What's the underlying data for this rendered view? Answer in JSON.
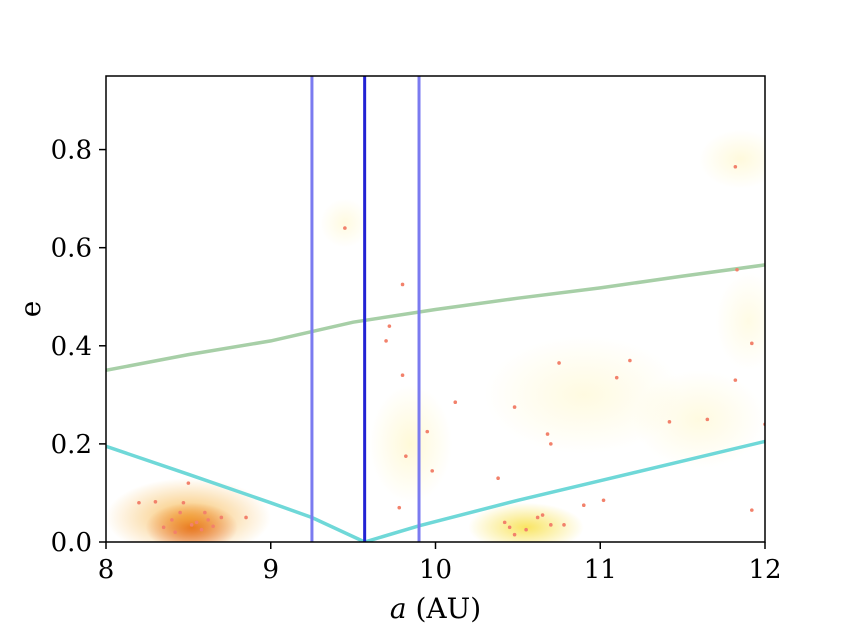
{
  "chart_data": {
    "type": "scatter",
    "xlabel_var": "a",
    "xlabel_unit": "(AU)",
    "ylabel": "e",
    "xlim": [
      8,
      12
    ],
    "ylim": [
      0,
      0.95
    ],
    "xticks": [
      8,
      9,
      10,
      11,
      12
    ],
    "xtick_labels": [
      "8",
      "9",
      "10",
      "11",
      "12"
    ],
    "yticks": [
      0.0,
      0.2,
      0.4,
      0.6,
      0.8
    ],
    "ytick_labels": [
      "0.0",
      "0.2",
      "0.4",
      "0.6",
      "0.8"
    ],
    "grid": false,
    "vertical_lines": [
      {
        "x": 9.25,
        "color": "#7b7bf0"
      },
      {
        "x": 9.57,
        "color": "#2222d4"
      },
      {
        "x": 9.9,
        "color": "#7b7bf0"
      }
    ],
    "curves": [
      {
        "color": "#a7cfa7",
        "points": [
          [
            8.0,
            0.35
          ],
          [
            8.5,
            0.382
          ],
          [
            9.0,
            0.41
          ],
          [
            9.5,
            0.448
          ],
          [
            10.0,
            0.474
          ],
          [
            10.5,
            0.497
          ],
          [
            11.0,
            0.518
          ],
          [
            11.5,
            0.542
          ],
          [
            12.0,
            0.565
          ]
        ]
      },
      {
        "color": "#6fd8d8",
        "points": [
          [
            8.0,
            0.195
          ],
          [
            8.5,
            0.138
          ],
          [
            9.0,
            0.08
          ],
          [
            9.25,
            0.05
          ],
          [
            9.57,
            0.0
          ],
          [
            9.9,
            0.033
          ],
          [
            10.5,
            0.085
          ],
          [
            11.0,
            0.125
          ],
          [
            11.5,
            0.165
          ],
          [
            12.0,
            0.205
          ]
        ]
      }
    ],
    "density_clouds": [
      {
        "x": 8.52,
        "y": 0.03,
        "sx": 0.28,
        "sy": 0.05,
        "color": "#d9400f",
        "opacity": 0.95
      },
      {
        "x": 8.5,
        "y": 0.05,
        "sx": 0.5,
        "sy": 0.08,
        "color": "#f5a623",
        "opacity": 0.7
      },
      {
        "x": 10.55,
        "y": 0.03,
        "sx": 0.35,
        "sy": 0.05,
        "color": "#f7dc2e",
        "opacity": 0.75
      },
      {
        "x": 9.85,
        "y": 0.2,
        "sx": 0.25,
        "sy": 0.12,
        "color": "#fff2a8",
        "opacity": 0.45
      },
      {
        "x": 10.9,
        "y": 0.3,
        "sx": 0.6,
        "sy": 0.12,
        "color": "#fff2a8",
        "opacity": 0.35
      },
      {
        "x": 11.6,
        "y": 0.25,
        "sx": 0.4,
        "sy": 0.1,
        "color": "#fff2a8",
        "opacity": 0.35
      },
      {
        "x": 11.85,
        "y": 0.78,
        "sx": 0.25,
        "sy": 0.06,
        "color": "#fff2a8",
        "opacity": 0.4
      },
      {
        "x": 9.45,
        "y": 0.65,
        "sx": 0.15,
        "sy": 0.05,
        "color": "#fff2a8",
        "opacity": 0.35
      },
      {
        "x": 11.9,
        "y": 0.45,
        "sx": 0.2,
        "sy": 0.1,
        "color": "#fff2a8",
        "opacity": 0.3
      }
    ],
    "point_color": "#f2816b",
    "points": [
      [
        8.2,
        0.08
      ],
      [
        8.3,
        0.082
      ],
      [
        8.35,
        0.03
      ],
      [
        8.4,
        0.045
      ],
      [
        8.45,
        0.06
      ],
      [
        8.47,
        0.08
      ],
      [
        8.5,
        0.12
      ],
      [
        8.52,
        0.035
      ],
      [
        8.55,
        0.04
      ],
      [
        8.6,
        0.06
      ],
      [
        8.62,
        0.045
      ],
      [
        8.65,
        0.032
      ],
      [
        8.7,
        0.05
      ],
      [
        8.85,
        0.05
      ],
      [
        8.42,
        0.02
      ],
      [
        8.58,
        0.025
      ],
      [
        9.45,
        0.64
      ],
      [
        9.8,
        0.525
      ],
      [
        9.72,
        0.44
      ],
      [
        9.7,
        0.41
      ],
      [
        9.8,
        0.34
      ],
      [
        9.95,
        0.225
      ],
      [
        9.82,
        0.175
      ],
      [
        9.98,
        0.145
      ],
      [
        9.78,
        0.07
      ],
      [
        10.12,
        0.285
      ],
      [
        10.48,
        0.275
      ],
      [
        10.38,
        0.13
      ],
      [
        10.68,
        0.22
      ],
      [
        10.7,
        0.2
      ],
      [
        10.75,
        0.365
      ],
      [
        10.42,
        0.04
      ],
      [
        10.45,
        0.03
      ],
      [
        10.48,
        0.015
      ],
      [
        10.55,
        0.025
      ],
      [
        10.62,
        0.05
      ],
      [
        10.65,
        0.055
      ],
      [
        10.7,
        0.035
      ],
      [
        10.78,
        0.035
      ],
      [
        10.9,
        0.075
      ],
      [
        11.02,
        0.085
      ],
      [
        11.1,
        0.335
      ],
      [
        11.18,
        0.37
      ],
      [
        11.42,
        0.245
      ],
      [
        11.65,
        0.25
      ],
      [
        11.82,
        0.765
      ],
      [
        11.83,
        0.555
      ],
      [
        11.82,
        0.33
      ],
      [
        11.92,
        0.405
      ],
      [
        11.92,
        0.065
      ],
      [
        12.0,
        0.24
      ]
    ]
  }
}
